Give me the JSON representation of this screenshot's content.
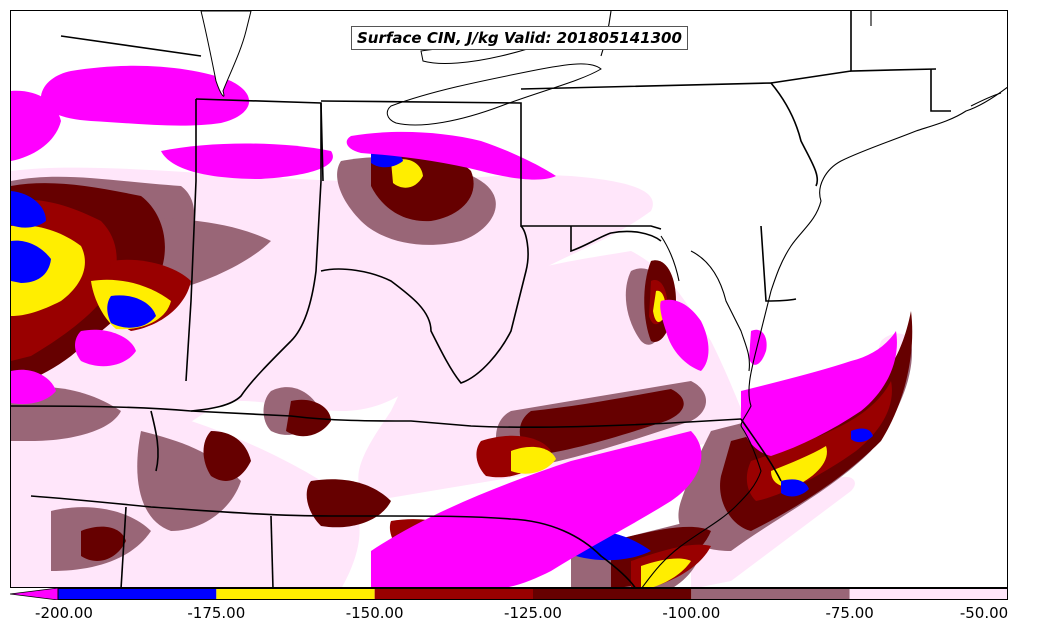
{
  "map": {
    "title": "Surface CIN, J/kg Valid: 201805141300",
    "field": "Surface CIN",
    "units": "J/kg",
    "valid": "201805141300"
  },
  "colors": {
    "lt-200": "#ff00ff",
    "m200_m175": "#0000ff",
    "m175_m150": "#ffee00",
    "m150_m125": "#990000",
    "m125_m100": "#660000",
    "m100_m75": "#996677",
    "m75_m50": "#ffe6fa",
    "land": "#ffffff",
    "borders": "#000000"
  },
  "legend": {
    "bins": [
      {
        "from": -210,
        "to": -200,
        "color": "#ff00ff"
      },
      {
        "from": -200,
        "to": -175,
        "color": "#0000ff"
      },
      {
        "from": -175,
        "to": -150,
        "color": "#ffee00"
      },
      {
        "from": -150,
        "to": -125,
        "color": "#990000"
      },
      {
        "from": -125,
        "to": -100,
        "color": "#660000"
      },
      {
        "from": -100,
        "to": -75,
        "color": "#996677"
      },
      {
        "from": -75,
        "to": -50,
        "color": "#ffe6fa"
      }
    ],
    "ticks": [
      "-200.00",
      "-175.00",
      "-150.00",
      "-125.00",
      "-100.00",
      "-75.00",
      "-50.00"
    ]
  }
}
